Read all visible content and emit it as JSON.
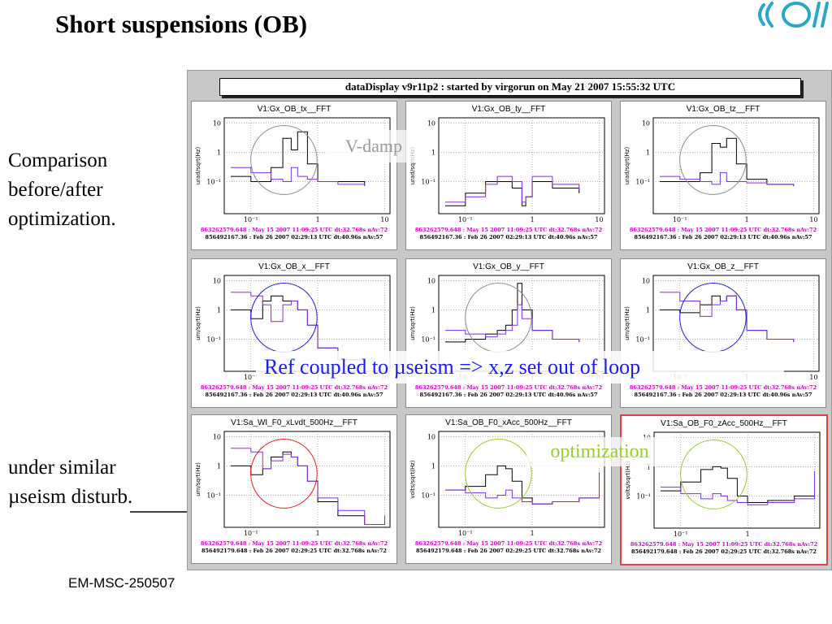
{
  "slide": {
    "title": "Short suspensions (OB)",
    "side_text_1": [
      "Comparison",
      "before/after",
      "optimization."
    ],
    "side_text_2": [
      "under similar",
      "µseism disturb."
    ],
    "footer": "EM-MSC-250507",
    "logo_icon": "virgo-logo-icon"
  },
  "banner": "dataDisplay v9r11p2 : started by virgorun on  May 21 2007 15:55:32 UTC",
  "annotations": {
    "ref_coupled": "Ref  coupled to µseism => x,z set out of  loop",
    "v_damp": "V-damp",
    "optimization": "optimization"
  },
  "colors": {
    "before": "#000000",
    "after": "#8a2be2",
    "legend_after_text": "#cc00cc",
    "circle_grey": "#8c8c8c",
    "circle_blue": "#1c1cd0",
    "circle_red": "#e02020",
    "circle_green": "#99cc33",
    "highlight_border": "#e04040"
  },
  "legend": {
    "after_a": "863262579.648 : May 15 2007 11:09:25 UTC dt:32.768s nAv:72",
    "before_a": "856492167.36 : Feb 26 2007 02:29:13 UTC dt:40.96s nAv:57",
    "before_b": "856492179.648 : Feb 26 2007 02:29:25 UTC dt:32.768s nAv:72"
  },
  "chart_data": [
    {
      "type": "line",
      "title": "V1:Gx_OB_tx__FFT",
      "ylabel": "urad/sqrt(Hz)",
      "ytick_labels": [
        "10",
        "1",
        "10⁻¹"
      ],
      "xtick_labels": [
        "10⁻¹",
        "1",
        "10"
      ],
      "x": [
        0.05,
        0.1,
        0.2,
        0.3,
        0.4,
        0.5,
        0.7,
        1,
        2,
        5
      ],
      "series": [
        {
          "name": "856492167.36 : Feb 26 2007 02:29:13 UTC dt:40.96s nAv:57",
          "values": [
            0.15,
            0.1,
            0.3,
            3,
            1.2,
            5,
            0.4,
            0.1,
            0.1,
            0.07
          ]
        },
        {
          "name": "863262579.648 : May 15 2007 11:09:25 UTC dt:32.768s nAv:72",
          "values": [
            0.3,
            0.2,
            0.12,
            0.1,
            0.3,
            0.15,
            0.12,
            0.1,
            0.08,
            0.07
          ]
        }
      ],
      "circle": "grey"
    },
    {
      "type": "line",
      "title": "V1:Gx_OB_ty__FFT",
      "ylabel": "urad/sqrt(Hz)",
      "ytick_labels": [
        "10",
        "1",
        "10⁻¹"
      ],
      "xtick_labels": [
        "10⁻¹",
        "1",
        "10"
      ],
      "x": [
        0.05,
        0.1,
        0.2,
        0.3,
        0.5,
        0.7,
        0.8,
        1,
        2,
        5
      ],
      "series": [
        {
          "name": "856492167.36 : Feb 26 2007 02:29:13 UTC dt:40.96s nAv:57",
          "values": [
            0.015,
            0.04,
            0.1,
            0.1,
            0.06,
            0.015,
            0.03,
            0.1,
            0.06,
            0.04
          ]
        },
        {
          "name": "863262579.648 : May 15 2007 11:09:25 UTC dt:32.768s nAv:72",
          "values": [
            0.02,
            0.03,
            0.08,
            0.15,
            0.1,
            0.02,
            0.03,
            0.15,
            0.08,
            0.05
          ]
        }
      ],
      "circle": "none"
    },
    {
      "type": "line",
      "title": "V1:Gx_OB_tz__FFT",
      "ylabel": "urad/sqrt(Hz)",
      "ytick_labels": [
        "10",
        "1",
        "10⁻¹"
      ],
      "xtick_labels": [
        "10⁻¹",
        "1",
        "10"
      ],
      "x": [
        0.05,
        0.1,
        0.2,
        0.3,
        0.4,
        0.5,
        0.7,
        1,
        2,
        5
      ],
      "series": [
        {
          "name": "856492167.36 : Feb 26 2007 02:29:13 UTC dt:40.96s nAv:57",
          "values": [
            0.1,
            0.1,
            0.2,
            2,
            1.5,
            3,
            0.4,
            0.12,
            0.08,
            0.07
          ]
        },
        {
          "name": "863262579.648 : May 15 2007 11:09:25 UTC dt:32.768s nAv:72",
          "values": [
            0.15,
            0.12,
            0.1,
            0.08,
            0.2,
            0.1,
            0.1,
            0.09,
            0.08,
            0.07
          ]
        }
      ],
      "circle": "grey"
    },
    {
      "type": "line",
      "title": "V1:Gx_OB_x__FFT",
      "ylabel": "um/sqrt(Hz)",
      "ytick_labels": [
        "10",
        "1",
        "10⁻¹"
      ],
      "xtick_labels": [
        "10⁻¹",
        "1",
        "10"
      ],
      "x": [
        0.05,
        0.1,
        0.15,
        0.2,
        0.3,
        0.4,
        0.5,
        0.7,
        1,
        2,
        5
      ],
      "series": [
        {
          "name": "856492167.36 : Feb 26 2007 02:29:13 UTC dt:40.96s nAv:57",
          "values": [
            1,
            0.5,
            2,
            3,
            2,
            2,
            1,
            0.3,
            0.05,
            0.02,
            0.02
          ]
        },
        {
          "name": "863262579.648 : May 15 2007 11:09:25 UTC dt:32.768s nAv:72",
          "values": [
            4,
            3,
            1.5,
            0.4,
            1.5,
            2,
            1,
            0.3,
            0.05,
            0.02,
            0.02
          ]
        }
      ],
      "circle": "blue"
    },
    {
      "type": "line",
      "title": "V1:Gx_OB_y__FFT",
      "ylabel": "um/sqrt(Hz)",
      "ytick_labels": [
        "10",
        "1",
        "10⁻¹"
      ],
      "xtick_labels": [
        "10⁻¹",
        "1",
        "10"
      ],
      "x": [
        0.05,
        0.1,
        0.2,
        0.3,
        0.4,
        0.5,
        0.6,
        0.7,
        1,
        2,
        5
      ],
      "series": [
        {
          "name": "856492167.36 : Feb 26 2007 02:29:13 UTC dt:40.96s nAv:57",
          "values": [
            0.08,
            0.1,
            0.15,
            0.2,
            0.3,
            1,
            8,
            1,
            0.2,
            0.1,
            0.08
          ]
        },
        {
          "name": "863262579.648 : May 15 2007 11:09:25 UTC dt:32.768s nAv:72",
          "values": [
            0.2,
            0.15,
            0.12,
            0.15,
            0.2,
            0.3,
            1.5,
            0.5,
            0.2,
            0.1,
            0.08
          ]
        }
      ],
      "circle": "grey"
    },
    {
      "type": "line",
      "title": "V1:Gx_OB_z__FFT",
      "ylabel": "um/sqrt(Hz)",
      "ytick_labels": [
        "10",
        "1",
        "10⁻¹"
      ],
      "xtick_labels": [
        "10⁻¹",
        "1",
        "10"
      ],
      "x": [
        0.05,
        0.1,
        0.2,
        0.3,
        0.4,
        0.5,
        0.7,
        1,
        2,
        5
      ],
      "series": [
        {
          "name": "856492167.36 : Feb 26 2007 02:29:13 UTC dt:40.96s nAv:57",
          "values": [
            1,
            0.8,
            1.5,
            3,
            2,
            3,
            1,
            0.2,
            0.1,
            0.08
          ]
        },
        {
          "name": "863262579.648 : May 15 2007 11:09:25 UTC dt:32.768s nAv:72",
          "values": [
            4,
            2,
            0.6,
            1.5,
            2,
            3,
            1,
            0.2,
            0.1,
            0.08
          ]
        }
      ],
      "circle": "blue"
    },
    {
      "type": "line",
      "title": "V1:Sa_WI_F0_xLvdt_500Hz__FFT",
      "ylabel": "um/sqrt(Hz)",
      "ytick_labels": [
        "10",
        "1",
        "10⁻¹"
      ],
      "xtick_labels": [
        "10⁻¹",
        "1"
      ],
      "x": [
        0.05,
        0.1,
        0.15,
        0.2,
        0.3,
        0.4,
        0.5,
        0.7,
        1,
        2,
        5,
        10
      ],
      "series": [
        {
          "name": "856492179.648 : Feb 26 2007 02:29:25 UTC dt:32.768s nAv:72",
          "values": [
            1,
            0.5,
            0.8,
            2,
            3,
            2,
            1,
            0.3,
            0.06,
            0.02,
            0.01,
            0.015
          ]
        },
        {
          "name": "863262579.648 : May 15 2007 11:09:25 UTC dt:32.768s nAv:72",
          "values": [
            4,
            3,
            0.8,
            1.5,
            2.5,
            2,
            1,
            0.3,
            0.08,
            0.03,
            0.01,
            0.02
          ]
        }
      ],
      "circle": "red"
    },
    {
      "type": "line",
      "title": "V1:Sa_OB_F0_xAcc_500Hz__FFT",
      "ylabel": "volts/sqrt(Hz)",
      "ytick_labels": [
        "10",
        "1",
        "10⁻¹"
      ],
      "xtick_labels": [
        "10⁻¹",
        "1"
      ],
      "x": [
        0.05,
        0.1,
        0.2,
        0.3,
        0.4,
        0.5,
        0.7,
        1,
        2,
        5,
        10
      ],
      "series": [
        {
          "name": "856492179.648 : Feb 26 2007 02:29:25 UTC dt:32.768s nAv:72",
          "values": [
            0.15,
            0.2,
            0.5,
            1,
            0.8,
            0.3,
            0.08,
            0.05,
            0.06,
            0.08,
            0.5
          ]
        },
        {
          "name": "863262579.648 : May 15 2007 11:09:25 UTC dt:32.768s nAv:72",
          "values": [
            0.15,
            0.12,
            0.08,
            0.1,
            0.15,
            0.08,
            0.06,
            0.05,
            0.06,
            0.08,
            0.6
          ]
        }
      ],
      "circle": "green"
    },
    {
      "type": "line",
      "title": "V1:Sa_OB_F0_zAcc_500Hz__FFT",
      "ylabel": "volts/sqrt(Hz)",
      "ytick_labels": [
        "10",
        "1",
        "10⁻¹"
      ],
      "xtick_labels": [
        "10⁻¹",
        "1"
      ],
      "x": [
        0.05,
        0.1,
        0.2,
        0.3,
        0.4,
        0.5,
        0.7,
        1,
        2,
        5,
        10
      ],
      "series": [
        {
          "name": "856492179.648 : Feb 26 2007 02:29:25 UTC dt:32.768s nAv:72",
          "values": [
            0.15,
            0.3,
            0.8,
            1,
            0.9,
            0.4,
            0.1,
            0.06,
            0.07,
            0.1,
            0.6
          ]
        },
        {
          "name": "863262579.648 : May 15 2007 11:09:25 UTC dt:32.768s nAv:72",
          "values": [
            0.2,
            0.12,
            0.08,
            0.12,
            0.1,
            0.07,
            0.06,
            0.05,
            0.06,
            0.08,
            0.7
          ]
        }
      ],
      "circle": "green"
    }
  ]
}
